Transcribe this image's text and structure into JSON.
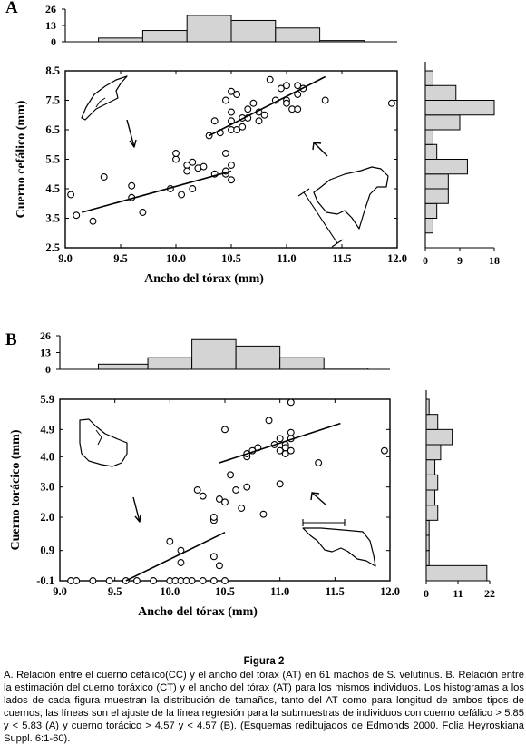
{
  "caption": {
    "title": "Figura 2",
    "text": "A. Relación entre el cuerno cefálico(CC) y el ancho del tórax (AT) en 61 machos de S. velutinus. B. Relación entre la estimación del cuerno toráxico (CT) y el ancho del tórax (AT) para los mismos individuos. Los histogramas a los lados de cada figura muestran la distribución de tamaños, tanto del AT como para longitud de ambos tipos de cuernos; las líneas son el ajuste de la línea regresión para la submuestras de individuos con cuerno cefálico > 5.85 y < 5.83 (A) y cuerno torácico > 4.57 y < 4.57 (B). (Esquemas redibujados de Edmonds 2000. Folia Heyroskiana Suppl. 6:1-60)."
  },
  "chart_data": [
    {
      "panel": "A",
      "type": "scatter",
      "xlabel": "Ancho del tórax  (mm)",
      "ylabel": "Cuerno cefálico  (mm)",
      "xlim": [
        9.0,
        12.0
      ],
      "ylim": [
        2.5,
        8.5
      ],
      "xticks": [
        "9.0",
        "9.5",
        "10.0",
        "10.5",
        "11.0",
        "11.5",
        "12.0"
      ],
      "yticks": [
        "2.5",
        "3.5",
        "4.5",
        "5.5",
        "6.5",
        "7.5",
        "8.5"
      ],
      "points": [
        [
          9.05,
          4.3
        ],
        [
          9.1,
          3.6
        ],
        [
          9.25,
          3.4
        ],
        [
          9.35,
          4.9
        ],
        [
          9.6,
          4.6
        ],
        [
          9.6,
          4.2
        ],
        [
          9.7,
          3.7
        ],
        [
          9.95,
          4.5
        ],
        [
          10.0,
          5.5
        ],
        [
          10.0,
          5.7
        ],
        [
          10.05,
          4.3
        ],
        [
          10.1,
          5.3
        ],
        [
          10.1,
          5.1
        ],
        [
          10.15,
          5.4
        ],
        [
          10.15,
          4.5
        ],
        [
          10.2,
          5.2
        ],
        [
          10.25,
          5.25
        ],
        [
          10.35,
          5.0
        ],
        [
          10.3,
          6.3
        ],
        [
          10.35,
          6.8
        ],
        [
          10.4,
          6.4
        ],
        [
          10.45,
          5.0
        ],
        [
          10.5,
          5.3
        ],
        [
          10.5,
          4.8
        ],
        [
          10.45,
          5.7
        ],
        [
          10.45,
          5.1
        ],
        [
          10.5,
          6.5
        ],
        [
          10.5,
          6.8
        ],
        [
          10.5,
          7.1
        ],
        [
          10.55,
          6.5
        ],
        [
          10.6,
          6.9
        ],
        [
          10.6,
          6.6
        ],
        [
          10.65,
          7.2
        ],
        [
          10.65,
          6.9
        ],
        [
          10.7,
          7.4
        ],
        [
          10.75,
          6.8
        ],
        [
          10.75,
          7.1
        ],
        [
          10.8,
          7.0
        ],
        [
          10.85,
          8.2
        ],
        [
          10.9,
          7.5
        ],
        [
          10.95,
          7.9
        ],
        [
          11.0,
          7.5
        ],
        [
          11.0,
          7.4
        ],
        [
          11.0,
          8.0
        ],
        [
          11.05,
          7.2
        ],
        [
          11.1,
          7.2
        ],
        [
          11.1,
          7.7
        ],
        [
          11.1,
          8.0
        ],
        [
          11.15,
          7.9
        ],
        [
          11.35,
          7.5
        ],
        [
          11.95,
          7.4
        ],
        [
          10.5,
          7.8
        ],
        [
          10.55,
          7.7
        ],
        [
          10.45,
          7.5
        ]
      ],
      "fits": [
        {
          "x": [
            9.15,
            10.5
          ],
          "y": [
            3.7,
            5.1
          ]
        },
        {
          "x": [
            10.3,
            11.35
          ],
          "y": [
            6.3,
            8.3
          ]
        }
      ],
      "top_histogram": {
        "ylim": [
          0,
          26
        ],
        "yticks": [
          "26",
          "13",
          "0"
        ],
        "bins": [
          [
            9.0,
            9.3,
            0
          ],
          [
            9.3,
            9.7,
            3
          ],
          [
            9.7,
            10.1,
            9
          ],
          [
            10.1,
            10.5,
            21
          ],
          [
            10.5,
            10.9,
            17
          ],
          [
            10.9,
            11.3,
            11
          ],
          [
            11.3,
            11.7,
            1
          ],
          [
            11.7,
            12.0,
            0
          ]
        ]
      },
      "right_histogram": {
        "xlim": [
          0,
          18
        ],
        "xticks": [
          "0",
          "9",
          "18"
        ],
        "bins": [
          [
            2.5,
            3.0,
            0
          ],
          [
            3.0,
            3.5,
            2
          ],
          [
            3.5,
            4.0,
            3
          ],
          [
            4.0,
            4.5,
            6
          ],
          [
            4.5,
            5.0,
            6
          ],
          [
            5.0,
            5.5,
            11
          ],
          [
            5.5,
            6.0,
            3
          ],
          [
            6.0,
            6.5,
            2
          ],
          [
            6.5,
            7.0,
            9
          ],
          [
            7.0,
            7.5,
            18
          ],
          [
            7.5,
            8.0,
            8
          ],
          [
            8.0,
            8.5,
            2
          ]
        ]
      }
    },
    {
      "panel": "B",
      "type": "scatter",
      "xlabel": "Ancho del tórax  (mm)",
      "ylabel": "Cuerno torácico  (mm)",
      "xlim": [
        9.0,
        12.0
      ],
      "ylim": [
        -0.1,
        5.9
      ],
      "xticks": [
        "9.0",
        "9.5",
        "10.0",
        "10.5",
        "11.0",
        "11.5",
        "12.0"
      ],
      "yticks": [
        "-0.1",
        "0.9",
        "2.0",
        "3.0",
        "4.0",
        "4.9",
        "5.9"
      ],
      "points": [
        [
          9.1,
          -0.1
        ],
        [
          9.15,
          -0.1
        ],
        [
          9.3,
          -0.1
        ],
        [
          9.45,
          -0.1
        ],
        [
          9.6,
          -0.1
        ],
        [
          9.7,
          -0.1
        ],
        [
          9.85,
          -0.1
        ],
        [
          10.0,
          -0.1
        ],
        [
          10.05,
          -0.1
        ],
        [
          10.1,
          -0.1
        ],
        [
          10.15,
          -0.1
        ],
        [
          10.2,
          -0.1
        ],
        [
          10.3,
          -0.1
        ],
        [
          10.4,
          -0.1
        ],
        [
          10.5,
          -0.1
        ],
        [
          10.45,
          0.4
        ],
        [
          10.1,
          0.5
        ],
        [
          10.0,
          1.2
        ],
        [
          10.1,
          0.9
        ],
        [
          10.4,
          0.7
        ],
        [
          10.4,
          1.9
        ],
        [
          10.4,
          2.0
        ],
        [
          10.5,
          2.5
        ],
        [
          10.25,
          2.9
        ],
        [
          10.3,
          2.7
        ],
        [
          10.45,
          2.6
        ],
        [
          10.55,
          3.4
        ],
        [
          10.6,
          2.9
        ],
        [
          10.65,
          2.3
        ],
        [
          10.7,
          3.0
        ],
        [
          10.75,
          4.2
        ],
        [
          10.7,
          4.0
        ],
        [
          10.8,
          4.3
        ],
        [
          10.85,
          2.1
        ],
        [
          10.9,
          5.2
        ],
        [
          10.95,
          4.4
        ],
        [
          11.0,
          4.6
        ],
        [
          11.05,
          4.4
        ],
        [
          11.05,
          4.1
        ],
        [
          11.1,
          5.8
        ],
        [
          11.1,
          4.8
        ],
        [
          11.1,
          4.2
        ],
        [
          11.0,
          3.1
        ],
        [
          11.0,
          4.2
        ],
        [
          11.05,
          4.3
        ],
        [
          11.35,
          3.8
        ],
        [
          10.5,
          4.9
        ],
        [
          10.7,
          4.1
        ],
        [
          11.1,
          4.6
        ],
        [
          11.95,
          4.2
        ]
      ],
      "fits": [
        {
          "x": [
            9.6,
            10.5
          ],
          "y": [
            -0.1,
            1.5
          ]
        },
        {
          "x": [
            10.45,
            11.55
          ],
          "y": [
            3.8,
            5.1
          ]
        }
      ],
      "top_histogram": {
        "ylim": [
          0,
          26
        ],
        "yticks": [
          "26",
          "13",
          "0"
        ],
        "bins": [
          [
            9.0,
            9.35,
            0
          ],
          [
            9.35,
            9.8,
            4
          ],
          [
            9.8,
            10.2,
            9
          ],
          [
            10.2,
            10.6,
            23
          ],
          [
            10.6,
            11.0,
            18
          ],
          [
            11.0,
            11.4,
            9
          ],
          [
            11.4,
            11.8,
            1
          ],
          [
            11.8,
            12.0,
            0
          ]
        ]
      },
      "right_histogram": {
        "xlim": [
          0,
          22
        ],
        "xticks": [
          "0",
          "11",
          "22"
        ],
        "bins": [
          [
            -0.1,
            0.4,
            21
          ],
          [
            0.4,
            0.9,
            1
          ],
          [
            0.9,
            1.4,
            1
          ],
          [
            1.4,
            1.9,
            1
          ],
          [
            1.9,
            2.4,
            4
          ],
          [
            2.4,
            2.9,
            3
          ],
          [
            2.9,
            3.4,
            4
          ],
          [
            3.4,
            3.9,
            3
          ],
          [
            3.9,
            4.4,
            5
          ],
          [
            4.4,
            4.9,
            9
          ],
          [
            4.9,
            5.4,
            4
          ],
          [
            5.4,
            5.9,
            1
          ]
        ]
      }
    }
  ]
}
